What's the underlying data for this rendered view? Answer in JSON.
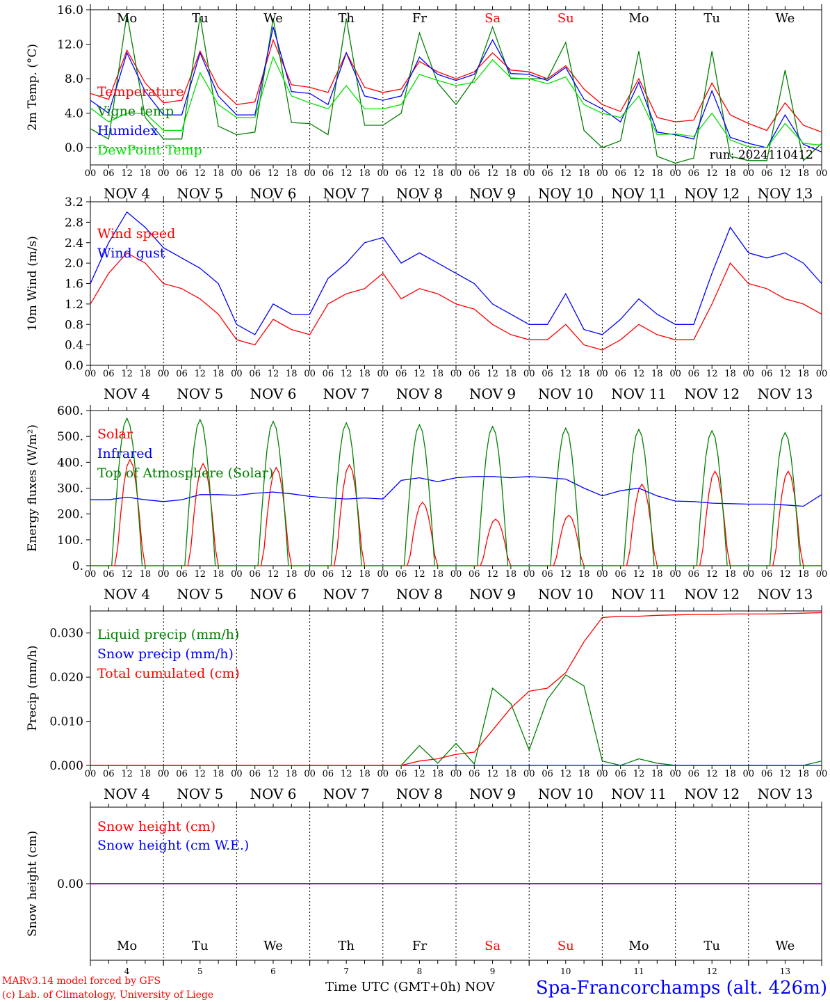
{
  "meta": {
    "credit_line_1": "MARv3.14 model forced by GFS",
    "credit_line_2": "(c) Lab. of Climatology, University of Liege",
    "xlabel": "Time UTC (GMT+0h) NOV",
    "station": "Spa-Francorchamps (alt. 426m)",
    "run": "run: 2024110412"
  },
  "colors": {
    "red": "#ff0000",
    "green": "#008000",
    "blue": "#0000ff",
    "lightgreen": "#00e000",
    "purple": "#8000a0",
    "weekend": "#ff0000",
    "text": "#000000"
  },
  "hour_ticks": [
    "00",
    "06",
    "12",
    "18"
  ],
  "end_tick": "00",
  "date_labels": [
    "NOV  4",
    "NOV  5",
    "NOV  6",
    "NOV  7",
    "NOV  8",
    "NOV  9",
    "NOV 10",
    "NOV 11",
    "NOV 12",
    "NOV 13"
  ],
  "weekdays": [
    "Mo",
    "Tu",
    "We",
    "Th",
    "Fr",
    "Sa",
    "Su",
    "Mo",
    "Tu",
    "We"
  ],
  "weekend_days": [
    "Sa",
    "Su"
  ],
  "day_numbers": [
    "4",
    "5",
    "6",
    "7",
    "8",
    "9",
    "10",
    "11",
    "12",
    "13"
  ],
  "chart_data": [
    {
      "type": "line",
      "ylabel": "2m Temp. (°C)",
      "ylim": [
        -2,
        16
      ],
      "yticks": [
        "16.0",
        "12.0",
        "8.0",
        "4.0",
        "0.0"
      ],
      "ytick_values": [
        16,
        12,
        8,
        4,
        0
      ],
      "zero_line": true,
      "x_unit": "hours since NOV 4 00 UTC",
      "x": [
        0,
        6,
        12,
        18,
        24,
        30,
        36,
        42,
        48,
        54,
        60,
        66,
        72,
        78,
        84,
        90,
        96,
        102,
        108,
        114,
        120,
        126,
        132,
        138,
        144,
        150,
        156,
        162,
        168,
        174,
        180,
        186,
        192,
        198,
        204,
        210,
        216,
        222,
        228,
        234,
        240
      ],
      "series": [
        {
          "name": "Temperature",
          "color": "#ff0000",
          "values": [
            6.3,
            5.6,
            11.3,
            7.5,
            5.2,
            5.5,
            11.2,
            7.0,
            5.0,
            5.3,
            12.5,
            7.3,
            7.0,
            6.4,
            11.0,
            7.0,
            6.4,
            6.8,
            10.0,
            8.8,
            8.0,
            8.8,
            11.0,
            9.0,
            8.8,
            8.0,
            9.5,
            6.8,
            5.0,
            4.2,
            8.0,
            3.5,
            3.0,
            3.2,
            7.5,
            3.8,
            2.8,
            2.0,
            5.2,
            2.6,
            1.8
          ]
        },
        {
          "name": "Vigne temp",
          "color": "#008000",
          "values": [
            2.2,
            1.0,
            15.5,
            3.5,
            1.0,
            1.0,
            15.2,
            2.5,
            1.5,
            1.8,
            15.0,
            2.9,
            2.8,
            1.5,
            15.0,
            2.6,
            2.6,
            4.0,
            13.3,
            7.5,
            5.0,
            8.0,
            14.0,
            8.0,
            8.0,
            8.0,
            12.2,
            2.0,
            0.0,
            0.8,
            11.2,
            -1.0,
            -1.8,
            -1.2,
            11.2,
            -1.0,
            -1.5,
            -1.5,
            9.0,
            -1.5,
            0.5
          ]
        },
        {
          "name": "Humidex",
          "color": "#0000ff",
          "values": [
            5.5,
            4.0,
            11.0,
            6.5,
            3.8,
            3.8,
            11.0,
            6.0,
            3.8,
            3.8,
            14.0,
            6.5,
            6.3,
            5.0,
            11.0,
            6.0,
            5.5,
            6.0,
            10.5,
            8.5,
            7.8,
            8.5,
            12.5,
            8.6,
            8.5,
            7.8,
            9.3,
            5.6,
            4.5,
            3.0,
            7.6,
            1.8,
            1.5,
            1.0,
            6.6,
            1.2,
            0.5,
            0.0,
            3.8,
            0.4,
            -0.5
          ]
        },
        {
          "name": "DewPoint Temp",
          "color": "#00e000",
          "values": [
            4.6,
            3.0,
            4.0,
            4.0,
            2.0,
            2.0,
            8.7,
            5.0,
            3.5,
            3.5,
            10.5,
            6.0,
            5.2,
            4.5,
            7.2,
            4.5,
            4.5,
            5.0,
            8.5,
            7.8,
            7.2,
            7.6,
            10.2,
            8.1,
            8.0,
            7.4,
            8.2,
            5.0,
            4.0,
            3.5,
            6.0,
            1.5,
            1.6,
            1.3,
            4.0,
            0.9,
            0.1,
            0.0,
            2.8,
            0.5,
            0.3
          ]
        }
      ],
      "annotation": "run: 2024110412"
    },
    {
      "type": "line",
      "ylabel": "10m Wind (m/s)",
      "ylim": [
        0,
        3.2
      ],
      "yticks": [
        "3.2",
        "2.8",
        "2.4",
        "2.0",
        "1.6",
        "1.2",
        "0.8",
        "0.4",
        "0.0"
      ],
      "ytick_values": [
        3.2,
        2.8,
        2.4,
        2.0,
        1.6,
        1.2,
        0.8,
        0.4,
        0.0
      ],
      "zero_line": false,
      "x_unit": "hours since NOV 4 00 UTC",
      "x": [
        0,
        6,
        12,
        18,
        24,
        30,
        36,
        42,
        48,
        54,
        60,
        66,
        72,
        78,
        84,
        90,
        96,
        102,
        108,
        114,
        120,
        126,
        132,
        138,
        144,
        150,
        156,
        162,
        168,
        174,
        180,
        186,
        192,
        198,
        204,
        210,
        216,
        222,
        228,
        234,
        240
      ],
      "series": [
        {
          "name": "Wind speed",
          "color": "#ff0000",
          "values": [
            1.2,
            1.8,
            2.2,
            2.0,
            1.6,
            1.5,
            1.3,
            1.0,
            0.5,
            0.4,
            0.9,
            0.7,
            0.6,
            1.2,
            1.4,
            1.5,
            1.8,
            1.3,
            1.5,
            1.4,
            1.2,
            1.1,
            0.8,
            0.6,
            0.5,
            0.5,
            0.8,
            0.4,
            0.3,
            0.5,
            0.8,
            0.6,
            0.5,
            0.5,
            1.2,
            2.0,
            1.6,
            1.5,
            1.3,
            1.2,
            1.0
          ]
        },
        {
          "name": "Wind gust",
          "color": "#0000ff",
          "values": [
            1.6,
            2.4,
            3.0,
            2.7,
            2.3,
            2.1,
            1.9,
            1.6,
            0.8,
            0.6,
            1.2,
            1.0,
            1.0,
            1.7,
            2.0,
            2.4,
            2.5,
            2.0,
            2.2,
            2.0,
            1.8,
            1.6,
            1.2,
            1.0,
            0.8,
            0.8,
            1.4,
            0.7,
            0.6,
            0.9,
            1.3,
            1.0,
            0.8,
            0.8,
            1.8,
            2.7,
            2.2,
            2.1,
            2.2,
            2.0,
            1.6
          ]
        }
      ]
    },
    {
      "type": "line",
      "ylabel": "Energy fluxes (W/m²)",
      "ylim": [
        0,
        600
      ],
      "yticks": [
        "600.",
        "500.",
        "400.",
        "300.",
        "200.",
        "100.",
        "0."
      ],
      "ytick_values": [
        600,
        500,
        400,
        300,
        200,
        100,
        0
      ],
      "zero_line": false,
      "x_unit": "hours since NOV 4 00 UTC",
      "x": [
        0,
        6,
        12,
        18,
        24,
        30,
        36,
        42,
        48,
        54,
        60,
        66,
        72,
        78,
        84,
        90,
        96,
        102,
        108,
        114,
        120,
        126,
        132,
        138,
        144,
        150,
        156,
        162,
        168,
        174,
        180,
        186,
        192,
        198,
        204,
        210,
        216,
        222,
        228,
        234,
        240
      ],
      "series": [
        {
          "name": "Solar",
          "color": "#ff0000",
          "peak_values": [
            410,
            395,
            380,
            390,
            245,
            180,
            195,
            315,
            365,
            365
          ],
          "peak_hours": [
            13,
            37,
            61,
            85,
            109,
            133,
            157,
            181,
            205,
            229
          ]
        },
        {
          "name": "Infrared",
          "color": "#0000ff",
          "values": [
            255,
            255,
            265,
            255,
            248,
            255,
            275,
            275,
            272,
            280,
            285,
            278,
            268,
            262,
            258,
            262,
            258,
            330,
            340,
            325,
            340,
            345,
            345,
            340,
            345,
            340,
            335,
            300,
            270,
            290,
            300,
            270,
            250,
            248,
            242,
            240,
            238,
            238,
            235,
            230,
            275
          ]
        },
        {
          "name": "Top of Atmosphere (Solar)",
          "color": "#008000",
          "peak_values": [
            570,
            565,
            558,
            552,
            545,
            538,
            532,
            527,
            522,
            515
          ],
          "peak_hours": [
            12,
            36,
            60,
            84,
            108,
            132,
            156,
            180,
            204,
            228
          ]
        }
      ]
    },
    {
      "type": "line",
      "ylabel": "Precip (mm/h)",
      "ylim": [
        0,
        0.035
      ],
      "yticks": [
        "0.030",
        "0.020",
        "0.010",
        "0.000"
      ],
      "ytick_values": [
        0.03,
        0.02,
        0.01,
        0.0
      ],
      "zero_line": false,
      "x_unit": "hours since NOV 4 00 UTC",
      "x": [
        0,
        6,
        12,
        18,
        24,
        30,
        36,
        42,
        48,
        54,
        60,
        66,
        72,
        78,
        84,
        90,
        96,
        102,
        108,
        114,
        120,
        126,
        132,
        138,
        144,
        150,
        156,
        162,
        168,
        174,
        180,
        186,
        192,
        198,
        204,
        210,
        216,
        222,
        228,
        234,
        240
      ],
      "series": [
        {
          "name": "Liquid precip (mm/h)",
          "color": "#008000",
          "values": [
            0,
            0,
            0,
            0,
            0,
            0,
            0,
            0,
            0,
            0,
            0,
            0,
            0,
            0,
            0,
            0,
            0,
            0,
            0.0045,
            0.0005,
            0.005,
            0.0003,
            0.0175,
            0.014,
            0.0035,
            0.015,
            0.0205,
            0.018,
            0.001,
            0,
            0.0015,
            0.0005,
            0,
            0,
            0,
            0,
            0,
            0,
            0,
            0,
            0.001
          ]
        },
        {
          "name": "Snow precip (mm/h)",
          "color": "#0000ff",
          "values": [
            0,
            0,
            0,
            0,
            0,
            0,
            0,
            0,
            0,
            0,
            0,
            0,
            0,
            0,
            0,
            0,
            0,
            0,
            0,
            0,
            0,
            0,
            0,
            0,
            0,
            0,
            0,
            0,
            0,
            0,
            0,
            0,
            0,
            0,
            0,
            0,
            0,
            0,
            0,
            0,
            0
          ]
        },
        {
          "name": "Total cumulated (cm)",
          "color": "#ff0000",
          "values": [
            0,
            0,
            0,
            0,
            0,
            0,
            0,
            0,
            0,
            0,
            0,
            0,
            0,
            0,
            0,
            0,
            0,
            0,
            0.001,
            0.0015,
            0.0025,
            0.003,
            0.008,
            0.013,
            0.0168,
            0.0175,
            0.021,
            0.028,
            0.0335,
            0.0338,
            0.0338,
            0.034,
            0.0341,
            0.0342,
            0.0342,
            0.0343,
            0.0343,
            0.0343,
            0.0344,
            0.0345,
            0.0346
          ]
        }
      ]
    },
    {
      "type": "line",
      "ylabel": "Snow height (cm)",
      "ylim": [
        -1,
        1
      ],
      "yticks": [
        "0.00"
      ],
      "ytick_values": [
        0
      ],
      "zero_line": false,
      "x_unit": "hours since NOV 4 00 UTC",
      "x": [
        0,
        240
      ],
      "series": [
        {
          "name": "Snow height (cm)",
          "color": "#ff0000",
          "values": [
            0,
            0
          ]
        },
        {
          "name": "Snow height (cm W.E.)",
          "color": "#0000ff",
          "values": [
            0,
            0
          ]
        }
      ]
    }
  ]
}
